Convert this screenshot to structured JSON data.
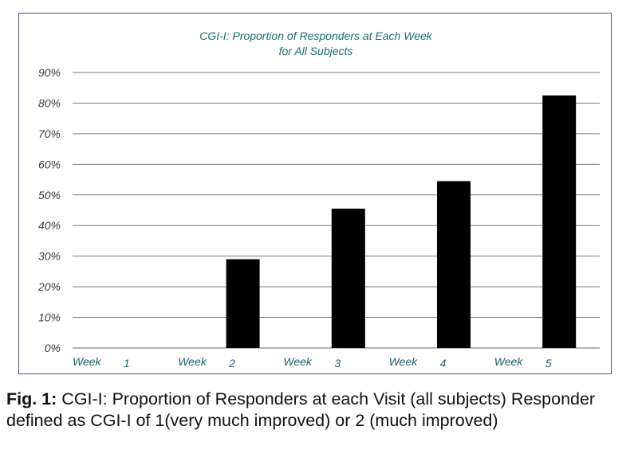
{
  "chart_data": {
    "type": "bar",
    "title_lines": [
      "CGI-I:  Proportion of Responders at Each Week",
      "for All Subjects"
    ],
    "categories": [
      {
        "week": "Week",
        "num": "1"
      },
      {
        "week": "Week",
        "num": "2"
      },
      {
        "week": "Week",
        "num": "3"
      },
      {
        "week": "Week",
        "num": "4"
      },
      {
        "week": "Week",
        "num": "5"
      }
    ],
    "values": [
      0,
      29,
      45.5,
      54.5,
      82.5
    ],
    "yticks": [
      "0%",
      "10%",
      "20%",
      "30%",
      "40%",
      "50%",
      "60%",
      "70%",
      "80%",
      "90%"
    ],
    "ylim": [
      0,
      90
    ],
    "grid": true,
    "bar_color": "#000000",
    "title_color": "#1f6b6b",
    "frame_color": "#5b4a86"
  },
  "caption": {
    "label": "Fig. 1:",
    "text": "  CGI-I:  Proportion of Responders at each Visit (all subjects) Responder defined as CGI-I of 1(very much improved) or 2 (much improved)"
  }
}
